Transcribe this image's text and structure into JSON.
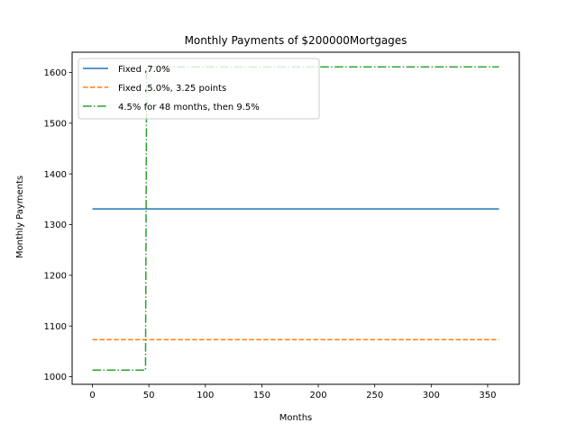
{
  "chart_data": {
    "type": "line",
    "title": "Monthly Payments of $200000Mortgages",
    "xlabel": "Months",
    "ylabel": "Monthly Payments",
    "xlim": [
      -18,
      378
    ],
    "ylim": [
      985,
      1640
    ],
    "xticks": [
      0,
      50,
      100,
      150,
      200,
      250,
      300,
      350
    ],
    "yticks": [
      1000,
      1100,
      1200,
      1300,
      1400,
      1500,
      1600
    ],
    "grid": false,
    "legend_position": "upper-left",
    "series": [
      {
        "name": "Fixed ,7.0%",
        "color": "#1f77b4",
        "dash": "solid",
        "x": [
          0,
          360
        ],
        "y": [
          1331,
          1331
        ]
      },
      {
        "name": "Fixed ,5.0%, 3.25 points",
        "color": "#ff7f0e",
        "dash": "dashed",
        "x": [
          0,
          360
        ],
        "y": [
          1073,
          1073
        ]
      },
      {
        "name": "4.5% for 48 months, then 9.5%",
        "color": "#2ca02c",
        "dash": "dashdot",
        "x": [
          0,
          47,
          48,
          360
        ],
        "y": [
          1013,
          1013,
          1611,
          1611
        ]
      }
    ]
  }
}
